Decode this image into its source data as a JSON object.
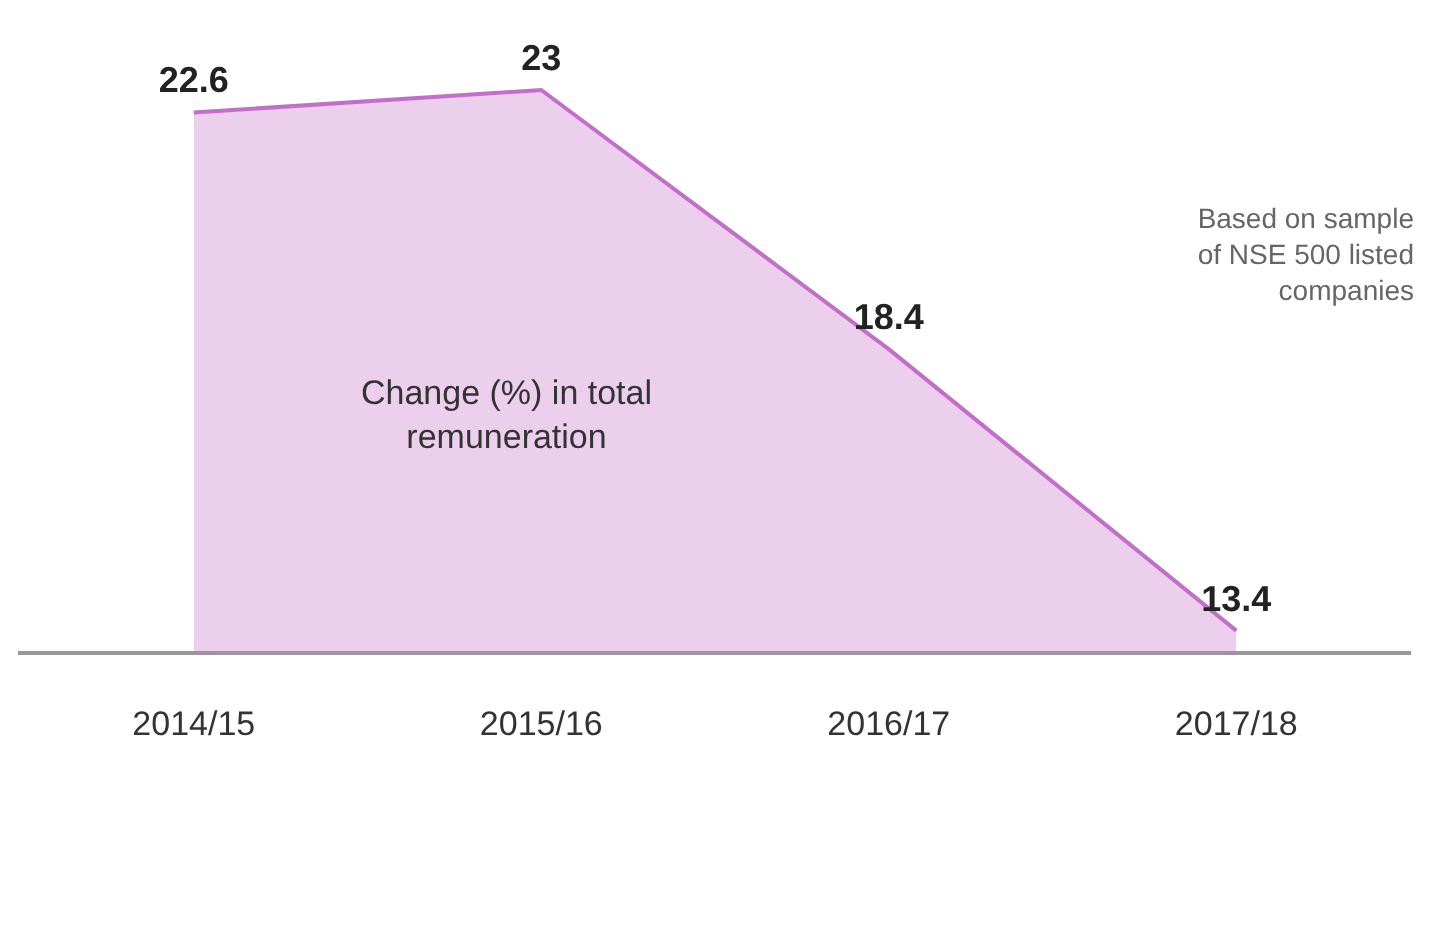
{
  "chart_data": {
    "type": "area",
    "title": "Change (%) in total remuneration",
    "categories": [
      "2014/15",
      "2015/16",
      "2016/17",
      "2017/18"
    ],
    "series": [
      {
        "color": "#c36fc9",
        "values": [
          22.6,
          23,
          18.4,
          13.4
        ]
      }
    ],
    "tick_labels": "x",
    "data_labels": true,
    "grid": false,
    "legend": false,
    "annotations": [
      "Based on sample of NSE 500 listed companies"
    ]
  }
}
